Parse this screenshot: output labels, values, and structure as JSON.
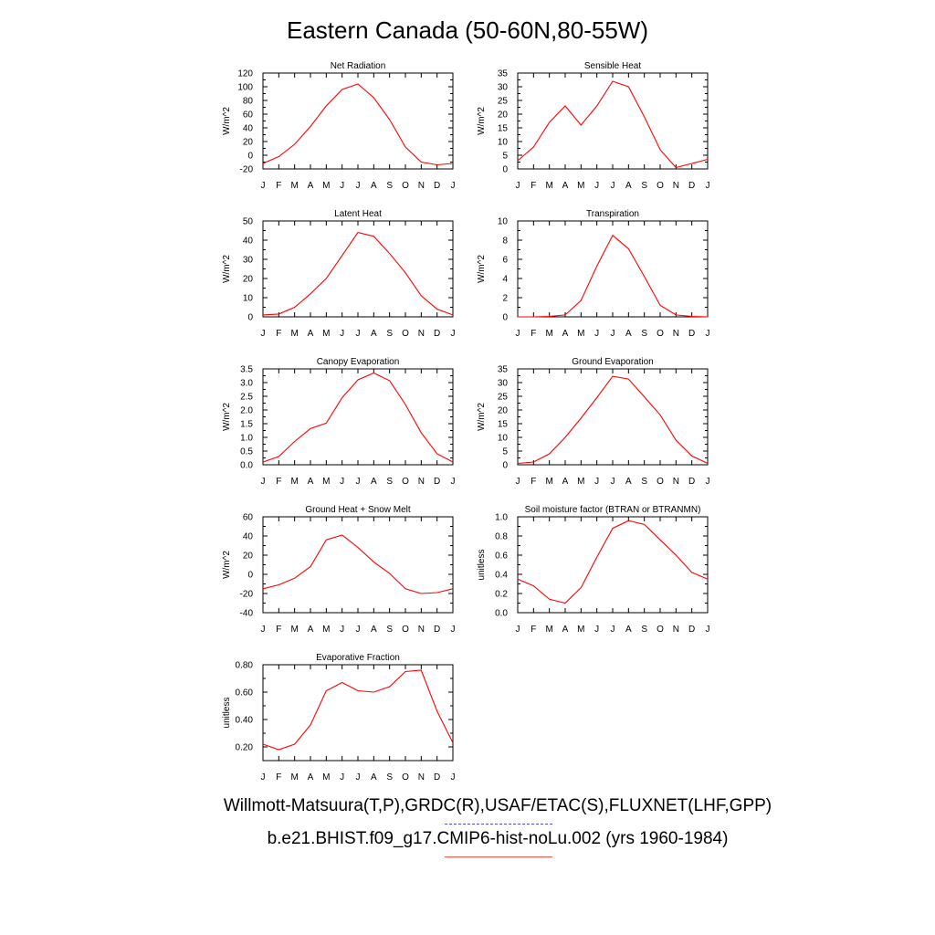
{
  "title": "Eastern Canada (50-60N,80-55W)",
  "footer": {
    "obs_sources": "Willmott-Matsuura(T,P),GRDC(R),USAF/ETAC(S),FLUXNET(LHF,GPP)",
    "model_case": "b.e21.BHIST.f09_g17.CMIP6-hist-noLu.002 (yrs 1960-1984)"
  },
  "colors": {
    "model_line": "#ff0000",
    "obs_line": "#4a4ae6"
  },
  "chart_data": [
    {
      "type": "line",
      "title": "Net Radiation",
      "ylabel": "W/m^2",
      "categories": [
        "J",
        "F",
        "M",
        "A",
        "M",
        "J",
        "J",
        "A",
        "S",
        "O",
        "N",
        "D",
        "J"
      ],
      "ylim": [
        -20,
        120
      ],
      "yticks": [
        -20,
        0,
        20,
        40,
        60,
        80,
        100,
        120
      ],
      "ytick_labels": [
        "-20",
        "0",
        "20",
        "40",
        "60",
        "80",
        "100",
        "120"
      ],
      "series": [
        {
          "values": [
            -12,
            -2,
            16,
            42,
            72,
            96,
            104,
            84,
            52,
            12,
            -10,
            -14,
            -12
          ]
        }
      ]
    },
    {
      "type": "line",
      "title": "Sensible Heat",
      "ylabel": "W/m^2",
      "categories": [
        "J",
        "F",
        "M",
        "A",
        "M",
        "J",
        "J",
        "A",
        "S",
        "O",
        "N",
        "D",
        "J"
      ],
      "ylim": [
        0,
        35
      ],
      "yticks": [
        0,
        5,
        10,
        15,
        20,
        25,
        30,
        35
      ],
      "ytick_labels": [
        "0",
        "5",
        "10",
        "15",
        "20",
        "25",
        "30",
        "35"
      ],
      "series": [
        {
          "values": [
            3,
            8,
            17,
            23,
            16,
            23,
            32,
            30,
            19,
            7,
            0.5,
            2,
            3.5
          ]
        }
      ]
    },
    {
      "type": "line",
      "title": "Latent Heat",
      "ylabel": "W/m^2",
      "categories": [
        "J",
        "F",
        "M",
        "A",
        "M",
        "J",
        "J",
        "A",
        "S",
        "O",
        "N",
        "D",
        "J"
      ],
      "ylim": [
        0,
        50
      ],
      "yticks": [
        0,
        10,
        20,
        30,
        40,
        50
      ],
      "ytick_labels": [
        "0",
        "10",
        "20",
        "30",
        "40",
        "50"
      ],
      "series": [
        {
          "values": [
            1,
            1.5,
            5,
            12,
            20,
            32,
            44,
            42,
            33,
            23,
            11,
            4,
            1
          ]
        }
      ]
    },
    {
      "type": "line",
      "title": "Transpiration",
      "ylabel": "W/m^2",
      "categories": [
        "J",
        "F",
        "M",
        "A",
        "M",
        "J",
        "J",
        "A",
        "S",
        "O",
        "N",
        "D",
        "J"
      ],
      "ylim": [
        0,
        10
      ],
      "yticks": [
        0,
        2,
        4,
        6,
        8,
        10
      ],
      "ytick_labels": [
        "0",
        "2",
        "4",
        "6",
        "8",
        "10"
      ],
      "series": [
        {
          "values": [
            0,
            0,
            0.05,
            0.2,
            1.7,
            5.3,
            8.5,
            7.1,
            4.2,
            1.2,
            0.2,
            0.05,
            0
          ]
        }
      ]
    },
    {
      "type": "line",
      "title": "Canopy Evaporation",
      "ylabel": "W/m^2",
      "categories": [
        "J",
        "F",
        "M",
        "A",
        "M",
        "J",
        "J",
        "A",
        "S",
        "O",
        "N",
        "D",
        "J"
      ],
      "ylim": [
        0,
        3.5
      ],
      "yticks": [
        0,
        0.5,
        1,
        1.5,
        2,
        2.5,
        3,
        3.5
      ],
      "ytick_labels": [
        "0.0",
        "0.5",
        "1.0",
        "1.5",
        "2.0",
        "2.5",
        "3.0",
        "3.5"
      ],
      "series": [
        {
          "values": [
            0.1,
            0.3,
            0.85,
            1.32,
            1.52,
            2.45,
            3.1,
            3.35,
            3.07,
            2.2,
            1.17,
            0.4,
            0.1
          ]
        }
      ]
    },
    {
      "type": "line",
      "title": "Ground Evaporation",
      "ylabel": "W/m^2",
      "categories": [
        "J",
        "F",
        "M",
        "A",
        "M",
        "J",
        "J",
        "A",
        "S",
        "O",
        "N",
        "D",
        "J"
      ],
      "ylim": [
        0,
        35
      ],
      "yticks": [
        0,
        5,
        10,
        15,
        20,
        25,
        30,
        35
      ],
      "ytick_labels": [
        "0",
        "5",
        "10",
        "15",
        "20",
        "25",
        "30",
        "35"
      ],
      "series": [
        {
          "values": [
            0.5,
            1,
            4,
            10,
            17,
            24.5,
            32.3,
            31.3,
            24.8,
            18.2,
            9,
            3.2,
            0.5
          ]
        }
      ]
    },
    {
      "type": "line",
      "title": "Ground Heat + Snow Melt",
      "ylabel": "W/m^2",
      "categories": [
        "J",
        "F",
        "M",
        "A",
        "M",
        "J",
        "J",
        "A",
        "S",
        "O",
        "N",
        "D",
        "J"
      ],
      "ylim": [
        -40,
        60
      ],
      "yticks": [
        -40,
        -20,
        0,
        20,
        40,
        60
      ],
      "ytick_labels": [
        "-40",
        "-20",
        "0",
        "20",
        "40",
        "60"
      ],
      "series": [
        {
          "values": [
            -15,
            -11,
            -4,
            8,
            36,
            41,
            28,
            13,
            1,
            -15,
            -20,
            -19,
            -15
          ]
        }
      ]
    },
    {
      "type": "line",
      "title": "Soil moisture factor (BTRAN or BTRANMN)",
      "ylabel": "unitless",
      "categories": [
        "J",
        "F",
        "M",
        "A",
        "M",
        "J",
        "J",
        "A",
        "S",
        "O",
        "N",
        "D",
        "J"
      ],
      "ylim": [
        0,
        1
      ],
      "yticks": [
        0,
        0.2,
        0.4,
        0.6,
        0.8,
        1
      ],
      "ytick_labels": [
        "0.0",
        "0.2",
        "0.4",
        "0.6",
        "0.8",
        "1.0"
      ],
      "series": [
        {
          "values": [
            0.35,
            0.28,
            0.14,
            0.1,
            0.26,
            0.58,
            0.88,
            0.96,
            0.92,
            0.76,
            0.6,
            0.42,
            0.35
          ]
        }
      ]
    },
    {
      "type": "line",
      "title": "Evaporative Fraction",
      "ylabel": "unitless",
      "categories": [
        "J",
        "F",
        "M",
        "A",
        "M",
        "J",
        "J",
        "A",
        "S",
        "O",
        "N",
        "D",
        "J"
      ],
      "ylim": [
        0.1,
        0.8
      ],
      "yticks": [
        0.2,
        0.4,
        0.6,
        0.8
      ],
      "ytick_labels": [
        "0.20",
        "0.40",
        "0.60",
        "0.80"
      ],
      "series": [
        {
          "values": [
            0.22,
            0.18,
            0.22,
            0.36,
            0.61,
            0.67,
            0.61,
            0.6,
            0.64,
            0.75,
            0.76,
            0.46,
            0.23
          ]
        }
      ]
    }
  ]
}
